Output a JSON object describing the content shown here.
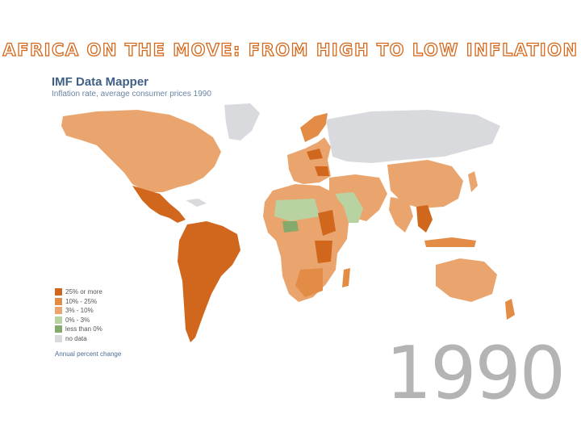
{
  "slide": {
    "title": "AFRICA ON THE MOVE: FROM HIGH TO LOW INFLATION",
    "year": "1990"
  },
  "map": {
    "brand": "IMF Data Mapper",
    "subtitle": "Inflation rate, average consumer prices 1990",
    "legend": [
      {
        "label": "25% or more",
        "color": "#d1661d"
      },
      {
        "label": "10% - 25%",
        "color": "#e38c46"
      },
      {
        "label": "3% - 10%",
        "color": "#eaa56e"
      },
      {
        "label": "0% - 3%",
        "color": "#b8d3a1"
      },
      {
        "label": "less than 0%",
        "color": "#86a96c"
      },
      {
        "label": "no data",
        "color": "#d9dade"
      }
    ],
    "legend_note": "Annual percent change"
  }
}
